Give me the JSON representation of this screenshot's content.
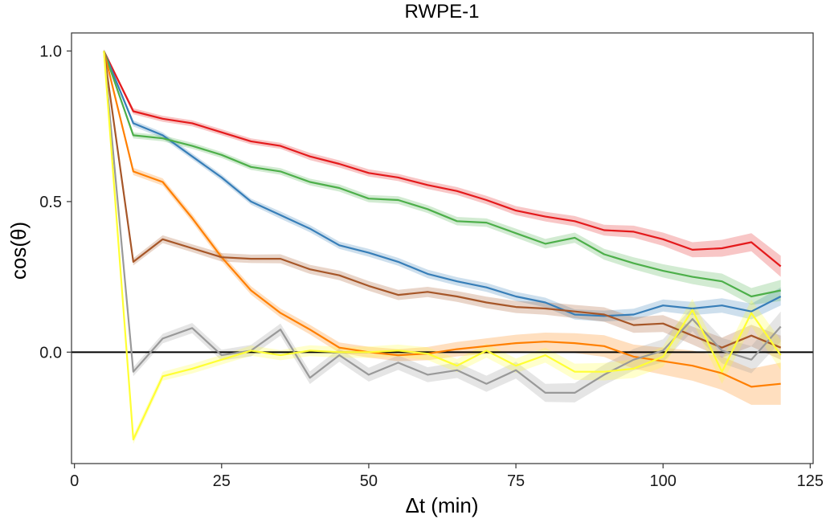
{
  "chart_data": {
    "type": "line",
    "title": "RWPE-1",
    "xlabel": "Δt (min)",
    "ylabel": "cos(θ)",
    "xlim": [
      -0.5,
      125.5
    ],
    "ylim": [
      -0.37,
      1.06
    ],
    "xticks": [
      0,
      25,
      50,
      75,
      100,
      125
    ],
    "xtick_labels": [
      "0",
      "25",
      "50",
      "75",
      "100",
      "125"
    ],
    "yticks": [
      0.0,
      0.5,
      1.0
    ],
    "ytick_labels": [
      "0.0",
      "0.5",
      "1.0"
    ],
    "hline": 0.0,
    "grid": false,
    "legend": "none",
    "x": [
      5,
      10,
      15,
      20,
      25,
      30,
      35,
      40,
      45,
      50,
      55,
      60,
      65,
      70,
      75,
      80,
      85,
      90,
      95,
      100,
      105,
      110,
      115,
      120
    ],
    "series": [
      {
        "color": "#e41a1c",
        "values": [
          1.0,
          0.8,
          0.775,
          0.76,
          0.73,
          0.7,
          0.685,
          0.65,
          0.625,
          0.595,
          0.58,
          0.555,
          0.535,
          0.505,
          0.47,
          0.45,
          0.435,
          0.405,
          0.4,
          0.375,
          0.34,
          0.345,
          0.365,
          0.285
        ],
        "band": [
          0.005,
          0.01,
          0.01,
          0.01,
          0.01,
          0.01,
          0.01,
          0.012,
          0.012,
          0.012,
          0.012,
          0.013,
          0.013,
          0.014,
          0.015,
          0.016,
          0.017,
          0.018,
          0.02,
          0.022,
          0.025,
          0.028,
          0.03,
          0.035
        ]
      },
      {
        "color": "#377eb8",
        "values": [
          1.0,
          0.76,
          0.72,
          0.65,
          0.58,
          0.5,
          0.455,
          0.41,
          0.355,
          0.33,
          0.3,
          0.26,
          0.235,
          0.215,
          0.185,
          0.165,
          0.125,
          0.12,
          0.125,
          0.155,
          0.145,
          0.155,
          0.135,
          0.185
        ],
        "band": [
          0.005,
          0.01,
          0.01,
          0.01,
          0.01,
          0.01,
          0.012,
          0.012,
          0.012,
          0.013,
          0.013,
          0.014,
          0.014,
          0.015,
          0.015,
          0.016,
          0.017,
          0.018,
          0.019,
          0.02,
          0.022,
          0.024,
          0.026,
          0.03
        ]
      },
      {
        "color": "#4daf4a",
        "values": [
          1.0,
          0.72,
          0.71,
          0.685,
          0.655,
          0.615,
          0.6,
          0.565,
          0.545,
          0.51,
          0.505,
          0.475,
          0.435,
          0.43,
          0.395,
          0.36,
          0.38,
          0.325,
          0.295,
          0.27,
          0.25,
          0.235,
          0.185,
          0.205
        ],
        "band": [
          0.005,
          0.01,
          0.01,
          0.01,
          0.01,
          0.01,
          0.011,
          0.011,
          0.012,
          0.012,
          0.013,
          0.013,
          0.014,
          0.014,
          0.015,
          0.016,
          0.017,
          0.018,
          0.02,
          0.022,
          0.024,
          0.026,
          0.028,
          0.035
        ]
      },
      {
        "color": "#ff7f00",
        "values": [
          1.0,
          0.6,
          0.565,
          0.445,
          0.315,
          0.205,
          0.13,
          0.075,
          0.015,
          0.0,
          -0.01,
          -0.005,
          0.01,
          0.02,
          0.03,
          0.035,
          0.03,
          0.02,
          -0.015,
          -0.03,
          -0.045,
          -0.07,
          -0.115,
          -0.105
        ],
        "band": [
          0.005,
          0.012,
          0.012,
          0.013,
          0.013,
          0.014,
          0.015,
          0.016,
          0.017,
          0.018,
          0.02,
          0.022,
          0.024,
          0.026,
          0.028,
          0.03,
          0.033,
          0.036,
          0.04,
          0.045,
          0.05,
          0.055,
          0.06,
          0.07
        ]
      },
      {
        "color": "#a65628",
        "values": [
          1.0,
          0.3,
          0.375,
          0.345,
          0.315,
          0.31,
          0.31,
          0.275,
          0.255,
          0.22,
          0.19,
          0.2,
          0.185,
          0.165,
          0.15,
          0.145,
          0.135,
          0.125,
          0.09,
          0.095,
          0.055,
          0.015,
          0.055,
          0.015
        ],
        "band": [
          0.005,
          0.012,
          0.013,
          0.013,
          0.014,
          0.014,
          0.015,
          0.015,
          0.016,
          0.016,
          0.017,
          0.017,
          0.018,
          0.019,
          0.02,
          0.021,
          0.022,
          0.024,
          0.026,
          0.028,
          0.03,
          0.033,
          0.036,
          0.04
        ]
      },
      {
        "color": "#999999",
        "values": [
          1.0,
          -0.065,
          0.045,
          0.08,
          -0.01,
          0.005,
          0.075,
          -0.085,
          -0.01,
          -0.075,
          -0.035,
          -0.075,
          -0.06,
          -0.105,
          -0.06,
          -0.135,
          -0.135,
          -0.075,
          -0.025,
          0.005,
          0.11,
          0.005,
          -0.025,
          0.085
        ],
        "band": [
          0.005,
          0.015,
          0.016,
          0.017,
          0.018,
          0.019,
          0.02,
          0.021,
          0.022,
          0.023,
          0.024,
          0.025,
          0.026,
          0.027,
          0.028,
          0.03,
          0.032,
          0.034,
          0.036,
          0.038,
          0.04,
          0.042,
          0.045,
          0.05
        ]
      },
      {
        "color": "#ffff33",
        "values": [
          1.0,
          -0.29,
          -0.08,
          -0.055,
          -0.025,
          0.005,
          -0.01,
          0.005,
          0.0,
          0.0,
          0.005,
          -0.005,
          -0.045,
          0.005,
          -0.045,
          -0.01,
          -0.065,
          -0.065,
          -0.055,
          -0.015,
          0.14,
          -0.065,
          0.13,
          -0.01
        ],
        "band": [
          0.005,
          0.015,
          0.015,
          0.016,
          0.016,
          0.017,
          0.017,
          0.018,
          0.018,
          0.019,
          0.02,
          0.021,
          0.022,
          0.023,
          0.024,
          0.025,
          0.027,
          0.029,
          0.031,
          0.034,
          0.037,
          0.04,
          0.044,
          0.05
        ]
      }
    ]
  }
}
